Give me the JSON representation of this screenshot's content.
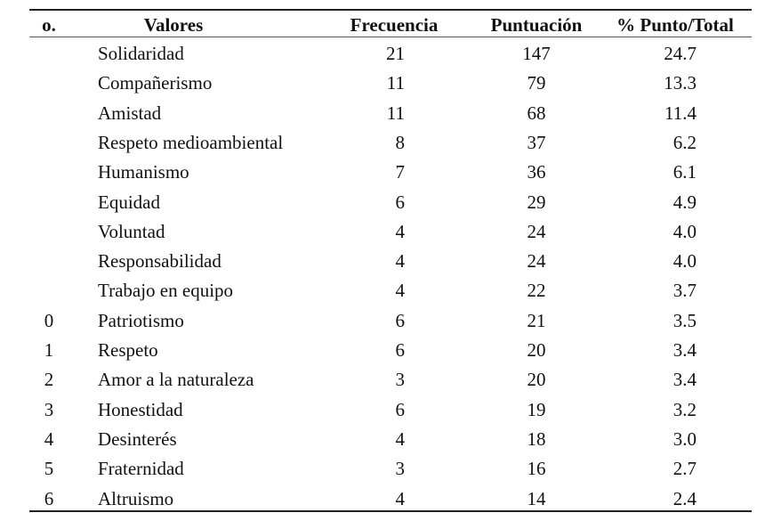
{
  "headers": {
    "no": "o.",
    "valores": "Valores",
    "frecuencia": "Frecuencia",
    "puntuacion": "Puntuación",
    "porcentaje": "% Punto/Total"
  },
  "rows": [
    {
      "no": "",
      "valor": "Solidaridad",
      "frecuencia": "21",
      "puntuacion": "147",
      "porcentaje": "24.7"
    },
    {
      "no": "",
      "valor": "Compañerismo",
      "frecuencia": "11",
      "puntuacion": "79",
      "porcentaje": "13.3"
    },
    {
      "no": "",
      "valor": "Amistad",
      "frecuencia": "11",
      "puntuacion": "68",
      "porcentaje": "11.4"
    },
    {
      "no": "",
      "valor": "Respeto medioambiental",
      "frecuencia": "8",
      "puntuacion": "37",
      "porcentaje": "6.2"
    },
    {
      "no": "",
      "valor": "Humanismo",
      "frecuencia": "7",
      "puntuacion": "36",
      "porcentaje": "6.1"
    },
    {
      "no": "",
      "valor": "Equidad",
      "frecuencia": "6",
      "puntuacion": "29",
      "porcentaje": "4.9"
    },
    {
      "no": "",
      "valor": "Voluntad",
      "frecuencia": "4",
      "puntuacion": "24",
      "porcentaje": "4.0"
    },
    {
      "no": "",
      "valor": "Responsabilidad",
      "frecuencia": "4",
      "puntuacion": "24",
      "porcentaje": "4.0"
    },
    {
      "no": "",
      "valor": "Trabajo en equipo",
      "frecuencia": "4",
      "puntuacion": "22",
      "porcentaje": "3.7"
    },
    {
      "no": "0",
      "valor": "Patriotismo",
      "frecuencia": "6",
      "puntuacion": "21",
      "porcentaje": "3.5"
    },
    {
      "no": "1",
      "valor": "Respeto",
      "frecuencia": "6",
      "puntuacion": "20",
      "porcentaje": "3.4"
    },
    {
      "no": "2",
      "valor": "Amor a la naturaleza",
      "frecuencia": "3",
      "puntuacion": "20",
      "porcentaje": "3.4"
    },
    {
      "no": "3",
      "valor": "Honestidad",
      "frecuencia": "6",
      "puntuacion": "19",
      "porcentaje": "3.2"
    },
    {
      "no": "4",
      "valor": "Desinterés",
      "frecuencia": "4",
      "puntuacion": "18",
      "porcentaje": "3.0"
    },
    {
      "no": "5",
      "valor": "Fraternidad",
      "frecuencia": "3",
      "puntuacion": "16",
      "porcentaje": "2.7"
    },
    {
      "no": "6",
      "valor": "Altruismo",
      "frecuencia": "4",
      "puntuacion": "14",
      "porcentaje": "2.4"
    }
  ]
}
